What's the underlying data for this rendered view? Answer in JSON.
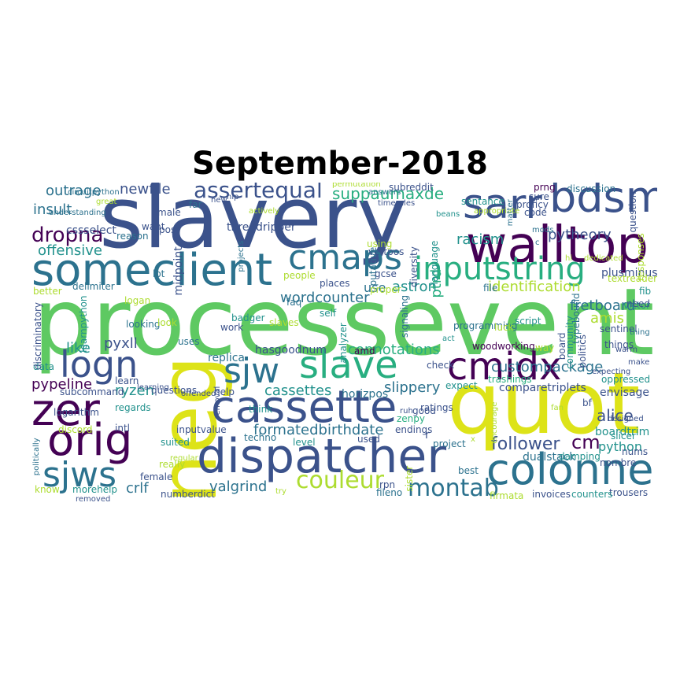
{
  "title": "September-2018",
  "palette": {
    "c1": "#440154",
    "c2": "#3b528b",
    "c3": "#2c728e",
    "c4": "#21918c",
    "c5": "#28ae80",
    "c6": "#5ec962",
    "c7": "#addc30",
    "c8": "#dde318"
  },
  "words": [
    {
      "id": "processevent",
      "text": "processevent",
      "color": "#5ec962"
    },
    {
      "id": "slavery",
      "text": "slavery",
      "color": "#3b528b"
    },
    {
      "id": "quot",
      "text": "quot",
      "color": "#dde318"
    },
    {
      "id": "neg",
      "text": "neg",
      "color": "#dde318"
    },
    {
      "id": "walltop",
      "text": "walltop",
      "color": "#440154"
    },
    {
      "id": "someclient",
      "text": "someclient",
      "color": "#2c728e"
    },
    {
      "id": "dispatcher",
      "text": "dispatcher",
      "color": "#3b528b"
    },
    {
      "id": "cassette",
      "text": "cassette",
      "color": "#3b528b"
    },
    {
      "id": "colonne",
      "text": "colonne",
      "color": "#2c728e"
    },
    {
      "id": "bdsm",
      "text": "bdsm",
      "color": "#3b528b"
    },
    {
      "id": "sarr",
      "text": "sarr",
      "color": "#3b528b"
    },
    {
      "id": "cmaps",
      "text": "cmaps",
      "color": "#2c728e"
    },
    {
      "id": "inputstring",
      "text": "inputstring",
      "color": "#28ae80"
    },
    {
      "id": "slave",
      "text": "slave",
      "color": "#28ae80"
    },
    {
      "id": "cmidx",
      "text": "cmidx",
      "color": "#440154"
    },
    {
      "id": "sjw",
      "text": "sjw",
      "color": "#2c728e"
    },
    {
      "id": "logn",
      "text": "logn",
      "color": "#3b528b"
    },
    {
      "id": "zer",
      "text": "zer",
      "color": "#440154"
    },
    {
      "id": "orig",
      "text": "orig",
      "color": "#440154"
    },
    {
      "id": "sjws",
      "text": "sjws",
      "color": "#2c728e"
    },
    {
      "id": "assertequal",
      "text": "assertequal",
      "color": "#3b528b"
    },
    {
      "id": "dropna",
      "text": "dropna",
      "color": "#440154"
    },
    {
      "id": "montab",
      "text": "montab",
      "color": "#2c728e"
    },
    {
      "id": "couleur",
      "text": "couleur",
      "color": "#addc30"
    },
    {
      "id": "cm",
      "text": "cm",
      "color": "#440154"
    },
    {
      "id": "formatedbirthdate",
      "text": "formatedbirthdate",
      "color": "#2c728e"
    },
    {
      "id": "suppaumaxde",
      "text": "suppaumaxde",
      "color": "#28ae80"
    },
    {
      "id": "outrage",
      "text": "outrage",
      "color": "#2c728e"
    },
    {
      "id": "newfile",
      "text": "newfile",
      "color": "#3b528b"
    },
    {
      "id": "insult",
      "text": "insult",
      "color": "#2c728e"
    },
    {
      "id": "cssselect",
      "text": "cssselect",
      "color": "#3b528b"
    },
    {
      "id": "offensive",
      "text": "offensive",
      "color": "#21918c"
    },
    {
      "id": "racism",
      "text": "racism",
      "color": "#21918c"
    },
    {
      "id": "pytheory",
      "text": "pytheory",
      "color": "#3b528b"
    },
    {
      "id": "midpoint",
      "text": "midpoint",
      "color": "#3b528b"
    },
    {
      "id": "ptrd",
      "text": "ptrd",
      "color": "#28ae80"
    },
    {
      "id": "wordcounter",
      "text": "wordcounter",
      "color": "#2c728e"
    },
    {
      "id": "astron",
      "text": "astron",
      "color": "#21918c"
    },
    {
      "id": "identification",
      "text": "identification",
      "color": "#addc30"
    },
    {
      "id": "fretboard",
      "text": "fretboard",
      "color": "#2c728e"
    },
    {
      "id": "amis",
      "text": "amis",
      "color": "#addc30"
    },
    {
      "id": "connotations",
      "text": "connotations",
      "color": "#28ae80"
    },
    {
      "id": "custompackage",
      "text": "custompackage",
      "color": "#2c728e"
    },
    {
      "id": "pyxll",
      "text": "pyxll",
      "color": "#3b528b"
    },
    {
      "id": "like",
      "text": "like",
      "color": "#21918c"
    },
    {
      "id": "pypeline",
      "text": "pypeline",
      "color": "#440154"
    },
    {
      "id": "ryzen",
      "text": "ryzen",
      "color": "#21918c"
    },
    {
      "id": "cassettes",
      "text": "cassettes",
      "color": "#21918c"
    },
    {
      "id": "slippery",
      "text": "slippery",
      "color": "#2c728e"
    },
    {
      "id": "follower",
      "text": "follower",
      "color": "#3b528b"
    },
    {
      "id": "python",
      "text": "python",
      "color": "#21918c"
    },
    {
      "id": "alice",
      "text": "alice",
      "color": "#3b528b"
    },
    {
      "id": "valgrind",
      "text": "valgrind",
      "color": "#2c728e"
    },
    {
      "id": "crlf",
      "text": "crlf",
      "color": "#2c728e"
    },
    {
      "id": "use",
      "text": "use",
      "color": "#2c728e"
    },
    {
      "id": "boardtrim",
      "text": "boardtrim",
      "color": "#21918c"
    },
    {
      "id": "dualstack",
      "text": "dualstack",
      "color": "#2c728e"
    },
    {
      "id": "numberdict",
      "text": "numberdict",
      "color": "#3b528b"
    },
    {
      "id": "compare",
      "text": "comparetriplets",
      "color": "#3b528b"
    },
    {
      "id": "envisage",
      "text": "envisage",
      "color": "#3b528b"
    },
    {
      "id": "victor",
      "text": "victor",
      "color": "#21918c"
    },
    {
      "id": "things",
      "text": "things",
      "color": "#3b528b"
    },
    {
      "id": "sentinel",
      "text": "sentinel",
      "color": "#3b528b"
    },
    {
      "id": "oppressed",
      "text": "oppressed",
      "color": "#21918c"
    },
    {
      "id": "slicer",
      "text": "slicer",
      "color": "#21918c"
    },
    {
      "id": "nums",
      "text": "nums",
      "color": "#3b528b"
    },
    {
      "id": "trousers",
      "text": "trousers",
      "color": "#3b528b"
    },
    {
      "id": "counters",
      "text": "counters",
      "color": "#21918c"
    },
    {
      "id": "invoices",
      "text": "invoices",
      "color": "#3b528b"
    },
    {
      "id": "firmata",
      "text": "firmata",
      "color": "#addc30"
    },
    {
      "id": "best",
      "text": "best",
      "color": "#2c728e"
    },
    {
      "id": "damping",
      "text": "damping",
      "color": "#21918c"
    },
    {
      "id": "nombre",
      "text": "nombre",
      "color": "#3b528b"
    },
    {
      "id": "threadripper",
      "text": "threadripper",
      "color": "#3b528b"
    },
    {
      "id": "replica",
      "text": "replica",
      "color": "#2c728e"
    },
    {
      "id": "hasgoodnum",
      "text": "hasgoodnum",
      "color": "#3b528b"
    },
    {
      "id": "horizpos",
      "text": "horizpos",
      "color": "#2c728e"
    },
    {
      "id": "zenpy",
      "text": "zenpy",
      "color": "#28ae80"
    },
    {
      "id": "vertpos",
      "text": "vertpos",
      "color": "#3b528b"
    },
    {
      "id": "putative",
      "text": "putative",
      "color": "#2c728e"
    },
    {
      "id": "diversity",
      "text": "diversity",
      "color": "#3b528b"
    },
    {
      "id": "language",
      "text": "language",
      "color": "#21918c"
    },
    {
      "id": "plusminus",
      "text": "plusminus",
      "color": "#3b528b"
    },
    {
      "id": "textreader",
      "text": "textreader",
      "color": "#addc30"
    },
    {
      "id": "fib",
      "text": "fib",
      "color": "#21918c"
    },
    {
      "id": "proficy",
      "text": "proficy",
      "color": "#3b528b"
    },
    {
      "id": "code",
      "text": "code",
      "color": "#3b528b"
    },
    {
      "id": "prng",
      "text": "prng",
      "color": "#440154"
    },
    {
      "id": "sure",
      "text": "sure",
      "color": "#3b528b"
    },
    {
      "id": "subreddit",
      "text": "subreddit",
      "color": "#3b528b"
    },
    {
      "id": "sentance",
      "text": "sentance",
      "color": "#21918c"
    },
    {
      "id": "discussion",
      "text": "discussion",
      "color": "#2c728e"
    },
    {
      "id": "question",
      "text": "question",
      "color": "#3b528b"
    },
    {
      "id": "responses",
      "text": "responses",
      "color": "#addc30"
    },
    {
      "id": "typebound",
      "text": "typebound",
      "color": "#2c728e"
    },
    {
      "id": "politics",
      "text": "politics",
      "color": "#3b528b"
    },
    {
      "id": "community",
      "text": "community",
      "color": "#21918c"
    },
    {
      "id": "board",
      "text": "board",
      "color": "#3b528b"
    },
    {
      "id": "woodworking",
      "text": "woodworking",
      "color": "#440154"
    },
    {
      "id": "programming",
      "text": "programming",
      "color": "#2c728e"
    },
    {
      "id": "signaling",
      "text": "signaling",
      "color": "#2c728e"
    },
    {
      "id": "analyzer",
      "text": "analyzer",
      "color": "#21918c"
    },
    {
      "id": "amd",
      "text": "amd",
      "color": "#440154"
    },
    {
      "id": "ratings",
      "text": "ratings",
      "color": "#3b528b"
    },
    {
      "id": "check",
      "text": "check",
      "color": "#3b528b"
    },
    {
      "id": "trashings",
      "text": "trashings",
      "color": "#28ae80"
    },
    {
      "id": "expect",
      "text": "expect",
      "color": "#21918c"
    },
    {
      "id": "good",
      "text": "good",
      "color": "#3b528b"
    },
    {
      "id": "endings",
      "text": "endings",
      "color": "#3b528b"
    },
    {
      "id": "project",
      "text": "project",
      "color": "#2c728e"
    },
    {
      "id": "sister",
      "text": "sister",
      "color": "#addc30"
    },
    {
      "id": "rpn",
      "text": "rpn",
      "color": "#3b528b"
    },
    {
      "id": "fileno",
      "text": "fileno",
      "color": "#2c728e"
    },
    {
      "id": "used",
      "text": "used",
      "color": "#3b528b"
    },
    {
      "id": "level",
      "text": "level",
      "color": "#21918c"
    },
    {
      "id": "techno",
      "text": "techno",
      "color": "#2c728e"
    },
    {
      "id": "inputvalue",
      "text": "inputvalue",
      "color": "#3b528b"
    },
    {
      "id": "removal",
      "text": "removal",
      "color": "#3b528b"
    },
    {
      "id": "intl",
      "text": "intl",
      "color": "#3b528b"
    },
    {
      "id": "discord",
      "text": "discord",
      "color": "#addc30"
    },
    {
      "id": "politically",
      "text": "politically",
      "color": "#2c728e"
    },
    {
      "id": "logarithm",
      "text": "logarithm",
      "color": "#3b528b"
    },
    {
      "id": "regards",
      "text": "regards",
      "color": "#21918c"
    },
    {
      "id": "subcommand",
      "text": "subcommand",
      "color": "#3b528b"
    },
    {
      "id": "questions",
      "text": "questions",
      "color": "#3b528b"
    },
    {
      "id": "help",
      "text": "help",
      "color": "#3b528b"
    },
    {
      "id": "learn",
      "text": "learn",
      "color": "#3b528b"
    },
    {
      "id": "data",
      "text": "data",
      "color": "#21918c"
    },
    {
      "id": "discriminatory",
      "text": "discriminatory",
      "color": "#3b528b"
    },
    {
      "id": "learnpython",
      "text": "learnpython",
      "color": "#21918c"
    },
    {
      "id": "delimiter",
      "text": "delimiter",
      "color": "#2c728e"
    },
    {
      "id": "better",
      "text": "better",
      "color": "#addc30"
    },
    {
      "id": "logan",
      "text": "logan",
      "color": "#addc30"
    },
    {
      "id": "looking",
      "text": "looking",
      "color": "#2c728e"
    },
    {
      "id": "uses",
      "text": "uses",
      "color": "#2c728e"
    },
    {
      "id": "look",
      "text": "look",
      "color": "#addc30"
    },
    {
      "id": "lot",
      "text": "lot",
      "color": "#2c728e"
    },
    {
      "id": "reason",
      "text": "reason",
      "color": "#2c728e"
    },
    {
      "id": "projects",
      "text": "projects",
      "color": "#2c728e"
    },
    {
      "id": "people",
      "text": "people",
      "color": "#addc30"
    },
    {
      "id": "places",
      "text": "places",
      "color": "#3b528b"
    },
    {
      "id": "gcse",
      "text": "gcse",
      "color": "#3b528b"
    },
    {
      "id": "proper",
      "text": "proper",
      "color": "#addc30"
    },
    {
      "id": "faq",
      "text": "faq",
      "color": "#2c728e"
    },
    {
      "id": "self",
      "text": "self",
      "color": "#21918c"
    },
    {
      "id": "slaves",
      "text": "slaves",
      "color": "#addc30"
    },
    {
      "id": "work",
      "text": "work",
      "color": "#3b528b"
    },
    {
      "id": "badger",
      "text": "badger",
      "color": "#21918c"
    },
    {
      "id": "think",
      "text": "think",
      "color": "#21918c"
    },
    {
      "id": "offended",
      "text": "offended",
      "color": "#3b528b"
    },
    {
      "id": "learning",
      "text": "learning",
      "color": "#3b528b"
    },
    {
      "id": "suited",
      "text": "suited",
      "color": "#21918c"
    },
    {
      "id": "really",
      "text": "really",
      "color": "#addc30"
    },
    {
      "id": "regular",
      "text": "regular",
      "color": "#addc30"
    },
    {
      "id": "female",
      "text": "female",
      "color": "#3b528b"
    },
    {
      "id": "know",
      "text": "know",
      "color": "#addc30"
    },
    {
      "id": "morehelp",
      "text": "morehelp",
      "color": "#21918c"
    },
    {
      "id": "removed",
      "text": "removed",
      "color": "#3b528b"
    },
    {
      "id": "circuitpython",
      "text": "circuitpython",
      "color": "#2c728e"
    },
    {
      "id": "great",
      "text": "great",
      "color": "#addc30"
    },
    {
      "id": "understanding",
      "text": "understanding",
      "color": "#2c728e"
    },
    {
      "id": "male",
      "text": "male",
      "color": "#3b528b"
    },
    {
      "id": "want",
      "text": "want",
      "color": "#3b528b"
    },
    {
      "id": "post",
      "text": "post",
      "color": "#3b528b"
    },
    {
      "id": "far",
      "text": "far",
      "color": "#2c728e"
    },
    {
      "id": "new",
      "text": "new",
      "color": "#3b528b"
    },
    {
      "id": "actively",
      "text": "actively",
      "color": "#addc30"
    },
    {
      "id": "permutation",
      "text": "permutation",
      "color": "#addc30"
    },
    {
      "id": "answers",
      "text": "answers",
      "color": "#2c728e"
    },
    {
      "id": "timerules",
      "text": "timerules",
      "color": "#3b528b"
    },
    {
      "id": "using",
      "text": "using",
      "color": "#addc30"
    },
    {
      "id": "beans",
      "text": "beans",
      "color": "#21918c"
    },
    {
      "id": "appropriate",
      "text": "appropriate",
      "color": "#addc30"
    },
    {
      "id": "matter",
      "text": "matter",
      "color": "#2c728e"
    },
    {
      "id": "mods",
      "text": "mods",
      "color": "#2c728e"
    },
    {
      "id": "file",
      "text": "file",
      "color": "#2c728e"
    },
    {
      "id": "luck",
      "text": "luck",
      "color": "#addc30"
    },
    {
      "id": "script",
      "text": "script",
      "color": "#21918c"
    },
    {
      "id": "way",
      "text": "way",
      "color": "#addc30"
    },
    {
      "id": "r",
      "text": "r",
      "color": "#3b528b"
    },
    {
      "id": "ruh",
      "text": "ruh",
      "color": "#3b528b"
    },
    {
      "id": "act",
      "text": "act",
      "color": "#21918c"
    },
    {
      "id": "hi",
      "text": "hi",
      "color": "#addc30"
    },
    {
      "id": "dedicated",
      "text": "dedicated",
      "color": "#addc30"
    },
    {
      "id": "need",
      "text": "need",
      "color": "#3b528b"
    },
    {
      "id": "thing",
      "text": "thing",
      "color": "#2c728e"
    },
    {
      "id": "warm",
      "text": "warm",
      "color": "#3b528b"
    },
    {
      "id": "bf",
      "text": "bf",
      "color": "#3b528b"
    },
    {
      "id": "fan",
      "text": "fan",
      "color": "#addc30"
    },
    {
      "id": "designed",
      "text": "designed",
      "color": "#3b528b"
    },
    {
      "id": "expecting",
      "text": "expecting",
      "color": "#3b528b"
    },
    {
      "id": "make",
      "text": "make",
      "color": "#3b528b"
    },
    {
      "id": "encourage",
      "text": "encourage",
      "color": "#addc30"
    },
    {
      "id": "x",
      "text": "x",
      "color": "#addc30"
    },
    {
      "id": "c",
      "text": "c",
      "color": "#2c728e"
    },
    {
      "id": "nlp",
      "text": "nlp",
      "color": "#3b528b"
    },
    {
      "id": "try",
      "text": "try",
      "color": "#addc30"
    }
  ]
}
